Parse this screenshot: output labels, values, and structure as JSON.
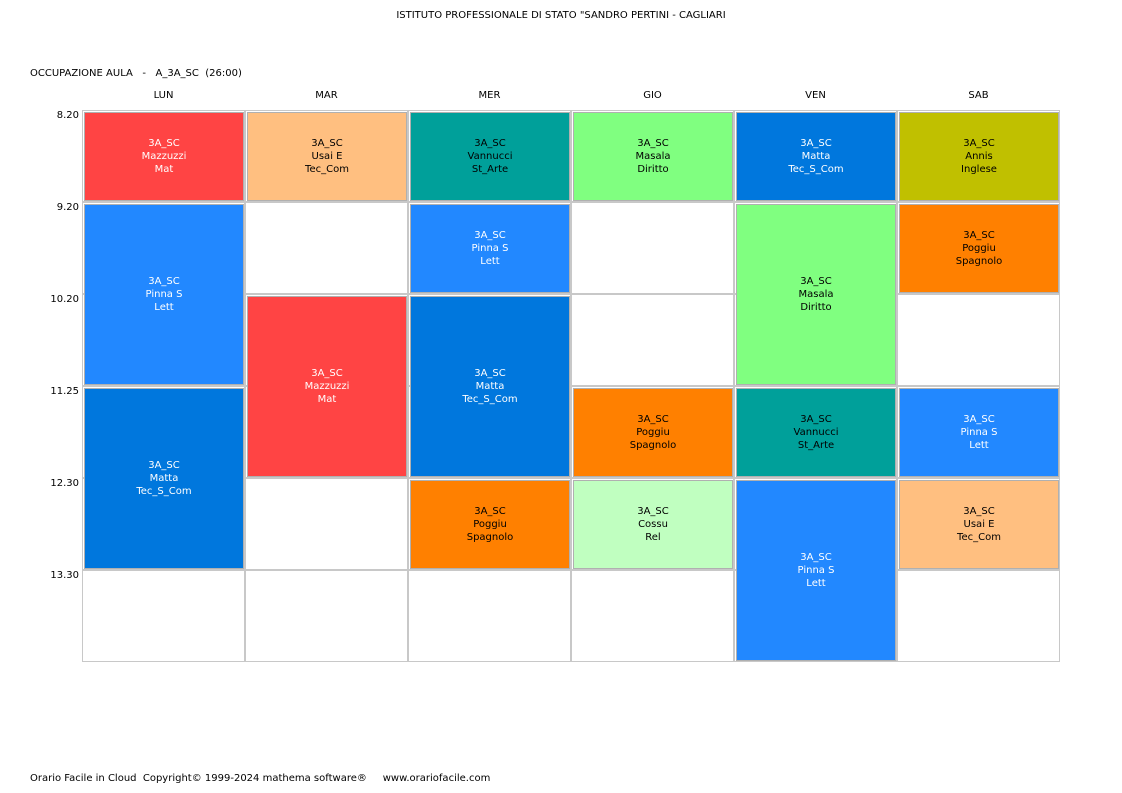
{
  "header": {
    "title": "ISTITUTO PROFESSIONALE DI STATO \"SANDRO PERTINI - CAGLIARI",
    "room_label": "OCCUPAZIONE AULA   -   A_3A_SC  (26:00)"
  },
  "days": [
    "LUN",
    "MAR",
    "MER",
    "GIO",
    "VEN",
    "SAB"
  ],
  "times": [
    "8.20",
    "9.20",
    "10.20",
    "11.25",
    "12.30",
    "13.30"
  ],
  "lessons": [
    {
      "day": 0,
      "start": 0,
      "span": 1,
      "cls": "3A_SC",
      "teacher": "Mazzuzzi",
      "subject": "Mat",
      "color": "#ff4444",
      "text_color": "#ffffff"
    },
    {
      "day": 0,
      "start": 1,
      "span": 2,
      "cls": "3A_SC",
      "teacher": "Pinna S",
      "subject": "Lett",
      "color": "#2288ff",
      "text_color": "#ffffff"
    },
    {
      "day": 0,
      "start": 3,
      "span": 2,
      "cls": "3A_SC",
      "teacher": "Matta",
      "subject": "Tec_S_Com",
      "color": "#0077dd",
      "text_color": "#ffffff"
    },
    {
      "day": 1,
      "start": 0,
      "span": 1,
      "cls": "3A_SC",
      "teacher": "Usai E",
      "subject": "Tec_Com",
      "color": "#ffbf80",
      "text_color": "#000000"
    },
    {
      "day": 1,
      "start": 2,
      "span": 2,
      "cls": "3A_SC",
      "teacher": "Mazzuzzi",
      "subject": "Mat",
      "color": "#ff4444",
      "text_color": "#ffffff"
    },
    {
      "day": 2,
      "start": 0,
      "span": 1,
      "cls": "3A_SC",
      "teacher": "Vannucci",
      "subject": "St_Arte",
      "color": "#00a09a",
      "text_color": "#000000"
    },
    {
      "day": 2,
      "start": 1,
      "span": 1,
      "cls": "3A_SC",
      "teacher": "Pinna S",
      "subject": "Lett",
      "color": "#2288ff",
      "text_color": "#ffffff"
    },
    {
      "day": 2,
      "start": 2,
      "span": 2,
      "cls": "3A_SC",
      "teacher": "Matta",
      "subject": "Tec_S_Com",
      "color": "#0077dd",
      "text_color": "#ffffff"
    },
    {
      "day": 2,
      "start": 4,
      "span": 1,
      "cls": "3A_SC",
      "teacher": "Poggiu",
      "subject": "Spagnolo",
      "color": "#ff8000",
      "text_color": "#000000"
    },
    {
      "day": 3,
      "start": 0,
      "span": 1,
      "cls": "3A_SC",
      "teacher": "Masala",
      "subject": "Diritto",
      "color": "#80ff80",
      "text_color": "#000000"
    },
    {
      "day": 3,
      "start": 3,
      "span": 1,
      "cls": "3A_SC",
      "teacher": "Poggiu",
      "subject": "Spagnolo",
      "color": "#ff8000",
      "text_color": "#000000"
    },
    {
      "day": 3,
      "start": 4,
      "span": 1,
      "cls": "3A_SC",
      "teacher": "Cossu",
      "subject": "Rel",
      "color": "#c0ffc0",
      "text_color": "#000000"
    },
    {
      "day": 4,
      "start": 0,
      "span": 1,
      "cls": "3A_SC",
      "teacher": "Matta",
      "subject": "Tec_S_Com",
      "color": "#0077dd",
      "text_color": "#ffffff"
    },
    {
      "day": 4,
      "start": 1,
      "span": 2,
      "cls": "3A_SC",
      "teacher": "Masala",
      "subject": "Diritto",
      "color": "#80ff80",
      "text_color": "#000000"
    },
    {
      "day": 4,
      "start": 3,
      "span": 1,
      "cls": "3A_SC",
      "teacher": "Vannucci",
      "subject": "St_Arte",
      "color": "#00a09a",
      "text_color": "#000000"
    },
    {
      "day": 4,
      "start": 4,
      "span": 2,
      "cls": "3A_SC",
      "teacher": "Pinna S",
      "subject": "Lett",
      "color": "#2288ff",
      "text_color": "#ffffff"
    },
    {
      "day": 5,
      "start": 0,
      "span": 1,
      "cls": "3A_SC",
      "teacher": "Annis",
      "subject": "Inglese",
      "color": "#c0c000",
      "text_color": "#000000"
    },
    {
      "day": 5,
      "start": 1,
      "span": 1,
      "cls": "3A_SC",
      "teacher": "Poggiu",
      "subject": "Spagnolo",
      "color": "#ff8000",
      "text_color": "#000000"
    },
    {
      "day": 5,
      "start": 3,
      "span": 1,
      "cls": "3A_SC",
      "teacher": "Pinna S",
      "subject": "Lett",
      "color": "#2288ff",
      "text_color": "#ffffff"
    },
    {
      "day": 5,
      "start": 4,
      "span": 1,
      "cls": "3A_SC",
      "teacher": "Usai E",
      "subject": "Tec_Com",
      "color": "#ffbf80",
      "text_color": "#000000"
    }
  ],
  "footer": {
    "text": "Orario Facile in Cloud  Copyright© 1999-2024 mathema software®     www.orariofacile.com"
  }
}
